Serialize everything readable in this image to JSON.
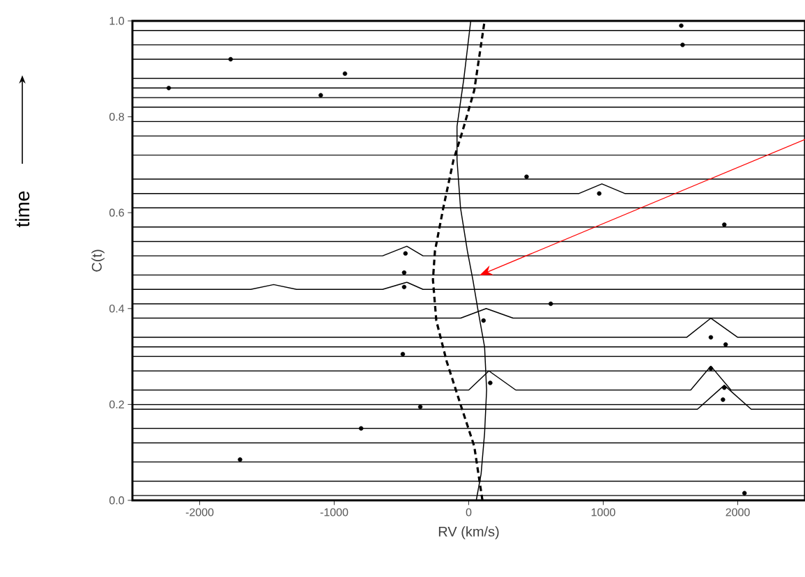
{
  "chart_data": {
    "type": "line",
    "xlabel": "RV (km/s)",
    "ylabel": "C(t)",
    "annotations": [
      "time"
    ],
    "xlim": [
      -2500,
      2500
    ],
    "ylim": [
      0,
      1
    ],
    "xticks": [
      -2000,
      -1000,
      0,
      1000,
      2000
    ],
    "yticks": [
      {
        "value": 0,
        "label": "0.0"
      },
      0.2,
      0.4,
      0.6,
      0.8,
      {
        "value": 1,
        "label": "1.0"
      }
    ],
    "grid": false,
    "marker": "none",
    "line_style": "solid",
    "series": [
      {
        "color": "#000000",
        "x": [
          -2500,
          2500
        ],
        "values": [
          0.98,
          0.98
        ]
      },
      {
        "color": "#000000",
        "x": [
          -2500,
          2500
        ],
        "values": [
          0.95,
          0.95
        ]
      },
      {
        "color": "#000000",
        "x": [
          -2500,
          2500
        ],
        "values": [
          0.92,
          0.92
        ]
      },
      {
        "color": "#000000",
        "x": [
          -2500,
          2500
        ],
        "values": [
          0.88,
          0.88
        ]
      },
      {
        "color": "#000000",
        "x": [
          -2500,
          2500
        ],
        "values": [
          0.86,
          0.86
        ]
      },
      {
        "color": "#000000",
        "x": [
          -2500,
          2500
        ],
        "values": [
          0.84,
          0.84
        ]
      },
      {
        "color": "#000000",
        "x": [
          -2500,
          2500
        ],
        "values": [
          0.82,
          0.82
        ]
      },
      {
        "color": "#000000",
        "x": [
          -2500,
          2500
        ],
        "values": [
          0.79,
          0.79
        ]
      },
      {
        "color": "#000000",
        "x": [
          -2500,
          2500
        ],
        "values": [
          0.76,
          0.76
        ]
      },
      {
        "color": "#000000",
        "x": [
          -2500,
          2500
        ],
        "values": [
          0.72,
          0.72
        ]
      },
      {
        "color": "#000000",
        "x": [
          -2500,
          2500
        ],
        "values": [
          0.67,
          0.67
        ]
      },
      {
        "color": "#000000",
        "x": [
          -2500,
          820,
          990,
          1160,
          2500
        ],
        "values": [
          0.64,
          0.64,
          0.66,
          0.64,
          0.64
        ]
      },
      {
        "color": "#000000",
        "x": [
          -2500,
          2500
        ],
        "values": [
          0.61,
          0.61
        ]
      },
      {
        "color": "#000000",
        "x": [
          -2500,
          2500
        ],
        "values": [
          0.57,
          0.57
        ]
      },
      {
        "color": "#000000",
        "x": [
          -2500,
          2500
        ],
        "values": [
          0.54,
          0.54
        ]
      },
      {
        "color": "#000000",
        "x": [
          -2500,
          -640,
          -460,
          -340,
          2500
        ],
        "values": [
          0.51,
          0.51,
          0.53,
          0.51,
          0.51
        ]
      },
      {
        "color": "#000000",
        "x": [
          -2500,
          2500
        ],
        "values": [
          0.47,
          0.47
        ]
      },
      {
        "color": "#000000",
        "x": [
          -2500,
          -1620,
          -1450,
          -1280,
          -640,
          -460,
          -340,
          2500
        ],
        "values": [
          0.44,
          0.44,
          0.45,
          0.44,
          0.44,
          0.455,
          0.44,
          0.44
        ]
      },
      {
        "color": "#000000",
        "x": [
          -2500,
          2500
        ],
        "values": [
          0.41,
          0.41
        ]
      },
      {
        "color": "#000000",
        "x": [
          -2500,
          -60,
          130,
          330,
          2500
        ],
        "values": [
          0.38,
          0.38,
          0.4,
          0.38,
          0.38
        ]
      },
      {
        "color": "#000000",
        "x": [
          -2500,
          1620,
          1800,
          2000,
          2500
        ],
        "values": [
          0.34,
          0.34,
          0.38,
          0.34,
          0.34
        ]
      },
      {
        "color": "#000000",
        "x": [
          -2500,
          2500
        ],
        "values": [
          0.32,
          0.32
        ]
      },
      {
        "color": "#000000",
        "x": [
          -2500,
          2500
        ],
        "values": [
          0.3,
          0.3
        ]
      },
      {
        "color": "#000000",
        "x": [
          -2500,
          2500
        ],
        "values": [
          0.27,
          0.27
        ]
      },
      {
        "color": "#000000",
        "x": [
          -2500,
          0,
          150,
          350,
          1650,
          1800,
          1950,
          2500
        ],
        "values": [
          0.23,
          0.23,
          0.27,
          0.23,
          0.23,
          0.28,
          0.23,
          0.23
        ]
      },
      {
        "color": "#000000",
        "x": [
          -2500,
          2500
        ],
        "values": [
          0.2,
          0.2
        ]
      },
      {
        "color": "#000000",
        "x": [
          -2500,
          1700,
          1900,
          2100,
          2500
        ],
        "values": [
          0.19,
          0.19,
          0.24,
          0.19,
          0.19
        ]
      },
      {
        "color": "#000000",
        "x": [
          -2500,
          2500
        ],
        "values": [
          0.15,
          0.15
        ]
      },
      {
        "color": "#000000",
        "x": [
          -2500,
          2500
        ],
        "values": [
          0.12,
          0.12
        ]
      },
      {
        "color": "#000000",
        "x": [
          -2500,
          2500
        ],
        "values": [
          0.08,
          0.08
        ]
      },
      {
        "color": "#000000",
        "x": [
          -2500,
          2500
        ],
        "values": [
          0.04,
          0.04
        ]
      },
      {
        "color": "#000000",
        "x": [
          -2500,
          2500
        ],
        "values": [
          0.01,
          0.01
        ]
      },
      {
        "color": "#000000",
        "x": [
          56,
          92,
          118,
          133,
          118,
          67,
          31,
          -10,
          -61,
          -87,
          -87,
          -36,
          15
        ],
        "values": [
          0,
          0.055,
          0.14,
          0.23,
          0.32,
          0.4,
          0.46,
          0.52,
          0.61,
          0.71,
          0.78,
          0.88,
          1.0
        ]
      },
      {
        "color": "#000000",
        "line_style": "dashed",
        "x": [
          102,
          41,
          -61,
          -164,
          -241,
          -266,
          -251,
          -189,
          -113,
          -46,
          41,
          118
        ],
        "values": [
          0,
          0.113,
          0.2,
          0.29,
          0.375,
          0.46,
          0.52,
          0.61,
          0.71,
          0.77,
          0.855,
          1.0
        ]
      },
      {
        "type": "scatter",
        "marker": "circle",
        "color": "#000000",
        "x": [
          1580,
          1590,
          -1770,
          -920,
          -2230,
          -1100,
          430,
          970,
          1900,
          -470,
          -480,
          -480,
          610,
          110,
          1800,
          1910,
          1800,
          -490,
          160,
          1900,
          1890,
          -360,
          -800,
          -1700,
          2050
        ],
        "values": [
          0.99,
          0.95,
          0.92,
          0.89,
          0.86,
          0.845,
          0.675,
          0.64,
          0.575,
          0.515,
          0.475,
          0.445,
          0.41,
          0.375,
          0.34,
          0.325,
          0.275,
          0.305,
          0.245,
          0.235,
          0.21,
          0.195,
          0.15,
          0.085,
          0.015
        ]
      }
    ]
  }
}
